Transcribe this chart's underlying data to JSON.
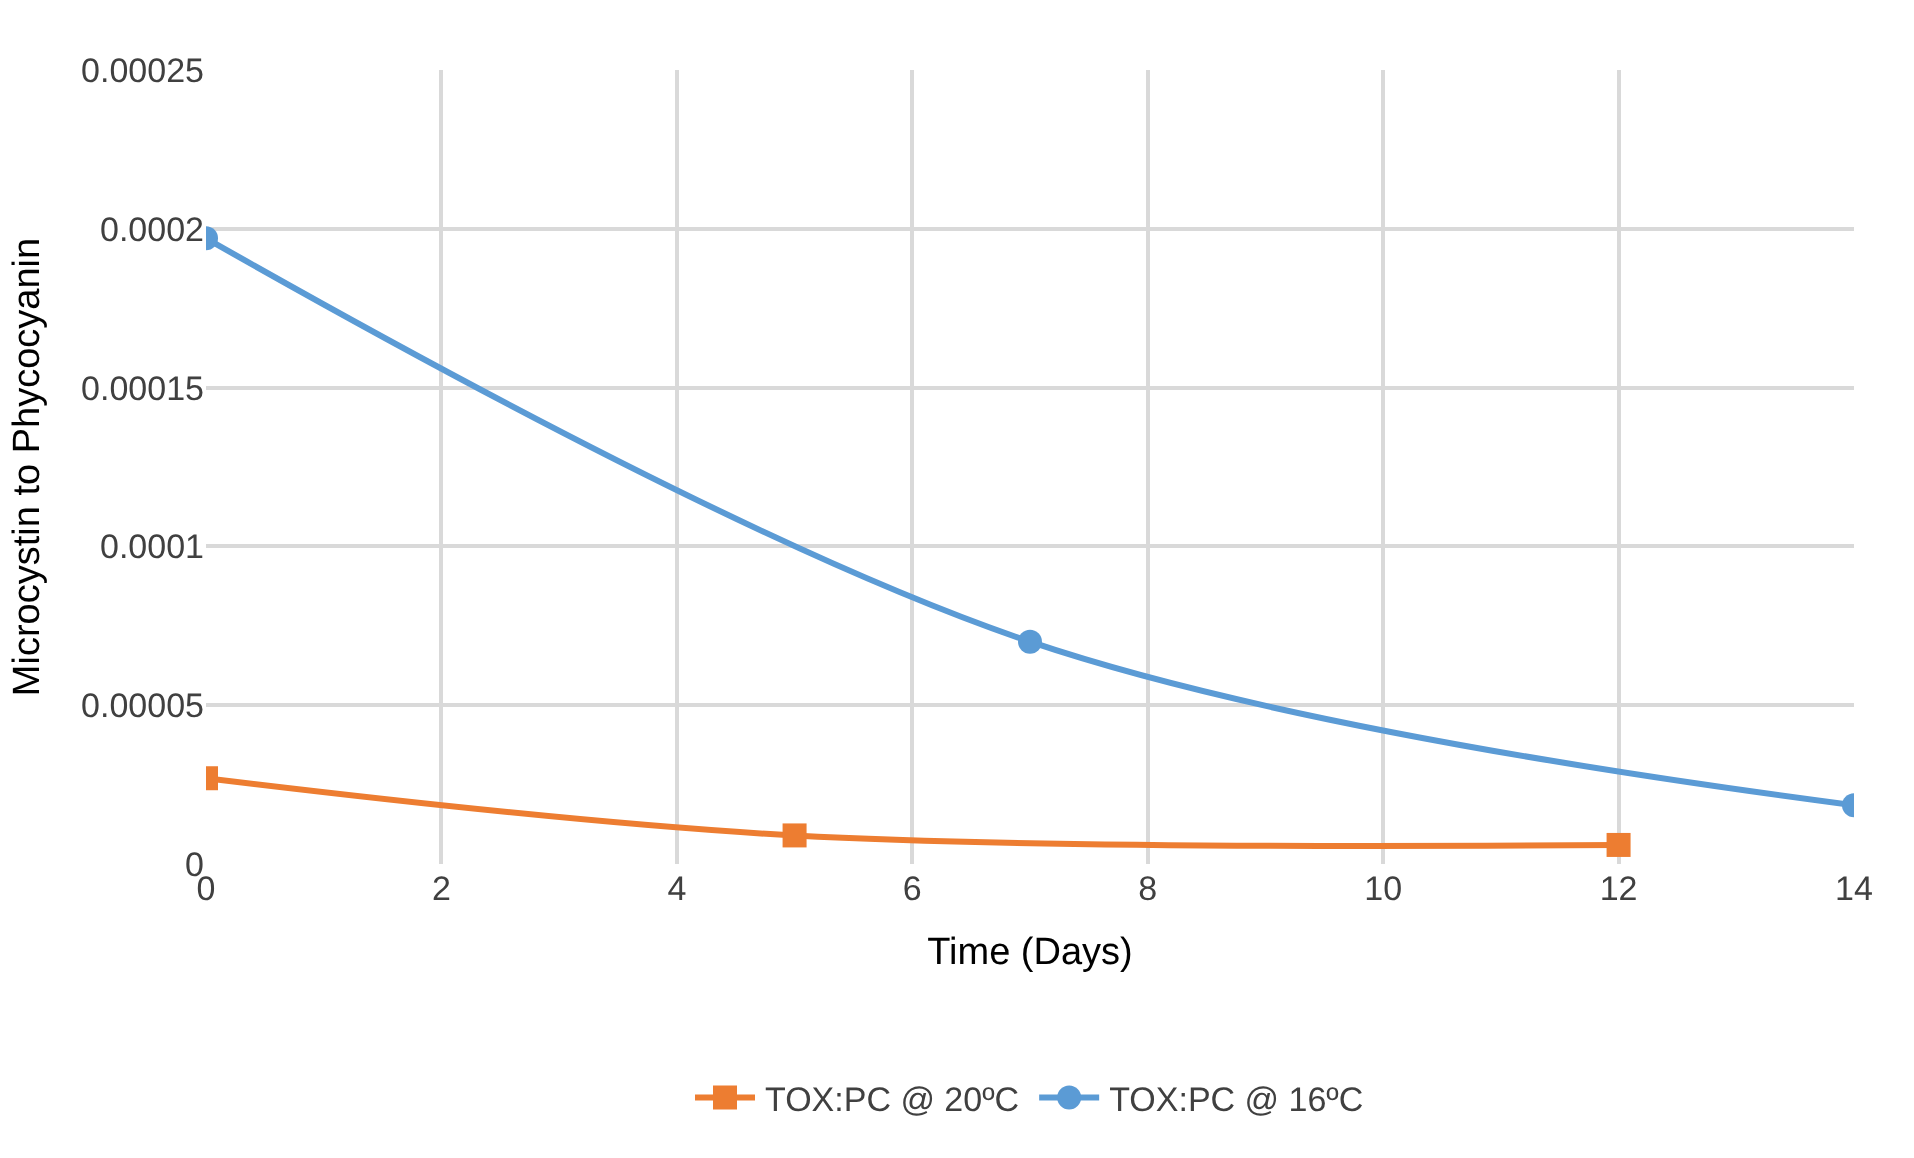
{
  "chart_data": {
    "type": "line",
    "xlabel": "Time (Days)",
    "ylabel": "Microcystin to Phycocyanin",
    "series": [
      {
        "name": "TOX:PC @ 20ºC",
        "color": "#ed7d31",
        "marker": "square",
        "x": [
          0,
          5,
          12
        ],
        "values": [
          2.7e-05,
          9e-06,
          6e-06
        ]
      },
      {
        "name": "TOX:PC @ 16ºC",
        "color": "#5b9bd5",
        "marker": "circle",
        "x": [
          0,
          7,
          14
        ],
        "values": [
          0.000197,
          7e-05,
          1.85e-05
        ]
      }
    ],
    "xlim": [
      0,
      14
    ],
    "xticks": [
      0,
      2,
      4,
      6,
      8,
      10,
      12,
      14
    ],
    "ylim": [
      0,
      0.00025
    ],
    "yticks": [
      {
        "value": 0,
        "label": "0"
      },
      {
        "value": 5e-05,
        "label": "0.00005"
      },
      {
        "value": 0.0001,
        "label": "0.0001"
      },
      {
        "value": 0.00015,
        "label": "0.00015"
      },
      {
        "value": 0.0002,
        "label": "0.0002"
      },
      {
        "value": 0.00025,
        "label": "0.00025"
      }
    ],
    "grid": true,
    "legend": "bottom",
    "line_style": "solid"
  }
}
